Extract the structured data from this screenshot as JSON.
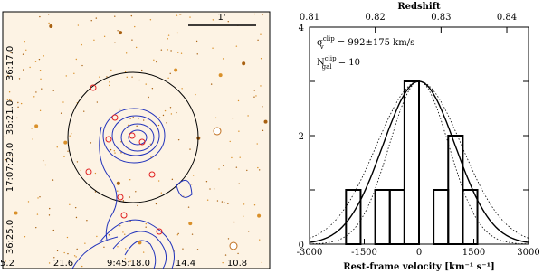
{
  "image_panel": {
    "scale_label": "1'",
    "y_labels": [
      "36:17.0",
      "36:21.0",
      "17:07:29.0",
      "36:25.0"
    ],
    "x_labels": [
      "5.2",
      "21.6",
      "9:45:18.0",
      "14.4",
      "10.8"
    ]
  },
  "chart_data": {
    "type": "histogram",
    "x_label": "Rest-frame velocity [km⁻¹ s⁻¹]",
    "x2_label": "Redshift",
    "bins": [
      -2000,
      -1600,
      -1200,
      -800,
      -400,
      0,
      400,
      800,
      1200,
      1600
    ],
    "values": [
      1,
      0,
      1,
      1,
      3,
      0,
      1,
      2,
      1
    ],
    "xlim": [
      -3000,
      3000
    ],
    "xticks": [
      -3000,
      -1500,
      0,
      1500,
      3000
    ],
    "ylim": [
      0,
      4
    ],
    "yticks": [
      0,
      1,
      2,
      3,
      4
    ],
    "ytick_labels": [
      {
        "value": 0,
        "label": "0"
      },
      {
        "value": 2,
        "label": "2"
      },
      {
        "value": 4,
        "label": "4"
      }
    ],
    "x2lim": [
      0.81,
      0.8433
    ],
    "x2ticks": [
      0.81,
      0.82,
      0.83,
      0.84
    ],
    "curves": [
      {
        "sigma": 992,
        "amplitude": 3,
        "style": "solid"
      },
      {
        "sigma": 817,
        "amplitude": 3,
        "style": "dotted"
      },
      {
        "sigma": 1167,
        "amplitude": 3,
        "style": "dotted"
      }
    ],
    "annotations": [
      [
        "σ",
        "v",
        "clip",
        " = 992±175 km/s"
      ],
      [
        "N",
        "gal",
        "clip",
        " = 10"
      ]
    ]
  }
}
